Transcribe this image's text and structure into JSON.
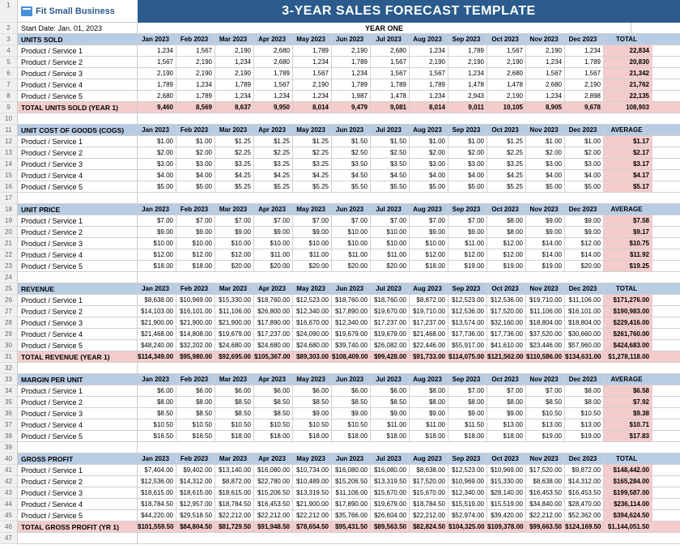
{
  "logo": "Fit Small Business",
  "title": "3-YEAR SALES FORECAST TEMPLATE",
  "startDate": "Start Date: Jan. 01, 2023",
  "yearLabel": "YEAR ONE",
  "months": [
    "Jan 2023",
    "Feb 2023",
    "Mar 2023",
    "Apr 2023",
    "May 2023",
    "Jun 2023",
    "Jul 2023",
    "Aug 2023",
    "Sep 2023",
    "Oct 2023",
    "Nov 2023",
    "Dec 2023"
  ],
  "totalLabel": "TOTAL",
  "averageLabel": "AVERAGE",
  "products": [
    "Product / Service 1",
    "Product / Service 2",
    "Product / Service 3",
    "Product / Service 4",
    "Product / Service 5"
  ],
  "sections": [
    {
      "header": "UNITS SOLD",
      "totalCol": "TOTAL",
      "rows": [
        {
          "vals": [
            "1,234",
            "1,567",
            "2,190",
            "2,680",
            "1,789",
            "2,190",
            "2,680",
            "1,234",
            "1,789",
            "1,567",
            "2,190",
            "1,234"
          ],
          "total": "22,834"
        },
        {
          "vals": [
            "1,567",
            "2,190",
            "1,234",
            "2,680",
            "1,234",
            "1,789",
            "1,567",
            "2,190",
            "2,190",
            "2,190",
            "1,234",
            "1,789"
          ],
          "total": "20,830"
        },
        {
          "vals": [
            "2,190",
            "2,190",
            "2,190",
            "1,789",
            "1,567",
            "1,234",
            "1,567",
            "1,567",
            "1,234",
            "2,680",
            "1,567",
            "1,567"
          ],
          "total": "21,342"
        },
        {
          "vals": [
            "1,789",
            "1,234",
            "1,789",
            "1,567",
            "2,190",
            "1,789",
            "1,789",
            "1,789",
            "1,478",
            "1,478",
            "2,680",
            "2,190"
          ],
          "total": "21,762"
        },
        {
          "vals": [
            "2,680",
            "1,789",
            "1,234",
            "1,234",
            "1,234",
            "1,987",
            "1,478",
            "1,234",
            "2,943",
            "2,190",
            "1,234",
            "2,898"
          ],
          "total": "22,135"
        }
      ],
      "totalRow": {
        "label": "TOTAL UNITS SOLD (YEAR 1)",
        "vals": [
          "9,460",
          "8,569",
          "8,637",
          "9,950",
          "8,014",
          "9,479",
          "9,081",
          "8,014",
          "9,011",
          "10,105",
          "8,905",
          "9,678"
        ],
        "total": "108,903"
      }
    },
    {
      "header": "UNIT COST OF GOODS (COGS)",
      "totalCol": "AVERAGE",
      "rows": [
        {
          "vals": [
            "$1.00",
            "$1.00",
            "$1.25",
            "$1.25",
            "$1.25",
            "$1.50",
            "$1.50",
            "$1.00",
            "$1.00",
            "$1.25",
            "$1.00",
            "$1.00"
          ],
          "total": "$1.17"
        },
        {
          "vals": [
            "$2.00",
            "$2.00",
            "$2.25",
            "$2.25",
            "$2.25",
            "$2.50",
            "$2.50",
            "$2.00",
            "$2.00",
            "$2.25",
            "$2.00",
            "$2.00"
          ],
          "total": "$2.17"
        },
        {
          "vals": [
            "$3.00",
            "$3.00",
            "$3.25",
            "$3.25",
            "$3.25",
            "$3.50",
            "$3.50",
            "$3.00",
            "$3.00",
            "$3.25",
            "$3.00",
            "$3.00"
          ],
          "total": "$3.17"
        },
        {
          "vals": [
            "$4.00",
            "$4.00",
            "$4.25",
            "$4.25",
            "$4.25",
            "$4.50",
            "$4.50",
            "$4.00",
            "$4.00",
            "$4.25",
            "$4.00",
            "$4.00"
          ],
          "total": "$4.17"
        },
        {
          "vals": [
            "$5.00",
            "$5.00",
            "$5.25",
            "$5.25",
            "$5.25",
            "$5.50",
            "$5.50",
            "$5.00",
            "$5.00",
            "$5.25",
            "$5.00",
            "$5.00"
          ],
          "total": "$5.17"
        }
      ]
    },
    {
      "header": "UNIT PRICE",
      "totalCol": "AVERAGE",
      "rows": [
        {
          "vals": [
            "$7.00",
            "$7.00",
            "$7.00",
            "$7.00",
            "$7.00",
            "$7.00",
            "$7.00",
            "$7.00",
            "$7.00",
            "$8.00",
            "$9.00",
            "$9.00"
          ],
          "total": "$7.58"
        },
        {
          "vals": [
            "$9.00",
            "$9.00",
            "$9.00",
            "$9.00",
            "$9.00",
            "$10.00",
            "$10.00",
            "$9.00",
            "$9.00",
            "$8.00",
            "$9.00",
            "$9.00"
          ],
          "total": "$9.17"
        },
        {
          "vals": [
            "$10.00",
            "$10.00",
            "$10.00",
            "$10.00",
            "$10.00",
            "$10.00",
            "$10.00",
            "$10.00",
            "$11.00",
            "$12.00",
            "$14.00",
            "$12.00"
          ],
          "total": "$10.75"
        },
        {
          "vals": [
            "$12.00",
            "$12.00",
            "$12.00",
            "$11.00",
            "$11.00",
            "$11.00",
            "$11.00",
            "$12.00",
            "$12.00",
            "$12.00",
            "$14.00",
            "$14.00"
          ],
          "total": "$11.92"
        },
        {
          "vals": [
            "$18.00",
            "$18.00",
            "$20.00",
            "$20.00",
            "$20.00",
            "$20.00",
            "$20.00",
            "$18.00",
            "$19.00",
            "$19.00",
            "$19.00",
            "$20.00"
          ],
          "total": "$19.25"
        }
      ]
    },
    {
      "header": "REVENUE",
      "totalCol": "TOTAL",
      "rows": [
        {
          "vals": [
            "$8,638.00",
            "$10,969.00",
            "$15,330.00",
            "$18,760.00",
            "$12,523.00",
            "$18,760.00",
            "$18,760.00",
            "$8,872.00",
            "$12,523.00",
            "$12,536.00",
            "$19,710.00",
            "$11,106.00"
          ],
          "total": "$171,276.00"
        },
        {
          "vals": [
            "$14,103.00",
            "$16,101.00",
            "$11,106.00",
            "$26,800.00",
            "$12,340.00",
            "$17,890.00",
            "$19,670.00",
            "$19,710.00",
            "$12,536.00",
            "$17,520.00",
            "$11,106.00",
            "$16,101.00"
          ],
          "total": "$190,983.00"
        },
        {
          "vals": [
            "$21,900.00",
            "$21,900.00",
            "$21,900.00",
            "$17,890.00",
            "$16,670.00",
            "$12,340.00",
            "$17,237.00",
            "$17,237.00",
            "$13,574.00",
            "$32,160.00",
            "$18,804.00",
            "$18,804.00"
          ],
          "total": "$229,416.00"
        },
        {
          "vals": [
            "$21,468.00",
            "$14,808.00",
            "$19,679.00",
            "$17,237.00",
            "$24,090.00",
            "$19,679.00",
            "$19,679.00",
            "$21,468.00",
            "$17,736.00",
            "$17,736.00",
            "$37,520.00",
            "$30,660.00"
          ],
          "total": "$261,760.00"
        },
        {
          "vals": [
            "$48,240.00",
            "$32,202.00",
            "$24,680.00",
            "$24,680.00",
            "$24,680.00",
            "$39,740.00",
            "$26,082.00",
            "$22,446.00",
            "$55,917.00",
            "$41,610.00",
            "$23,446.00",
            "$57,960.00"
          ],
          "total": "$424,683.00"
        }
      ],
      "totalRow": {
        "label": "TOTAL REVENUE (YEAR 1)",
        "vals": [
          "$114,349.00",
          "$95,980.00",
          "$92,695.00",
          "$105,367.00",
          "$89,303.00",
          "$108,409.00",
          "$99,428.00",
          "$91,733.00",
          "$114,075.00",
          "$121,562.00",
          "$110,586.00",
          "$134,631.00"
        ],
        "total": "$1,278,118.00"
      }
    },
    {
      "header": "MARGIN PER UNIT",
      "totalCol": "AVERAGE",
      "rows": [
        {
          "vals": [
            "$6.00",
            "$6.00",
            "$6.00",
            "$6.00",
            "$6.00",
            "$6.00",
            "$6.00",
            "$8.00",
            "$7.00",
            "$7.00",
            "$7.00",
            "$8.00"
          ],
          "total": "$6.58"
        },
        {
          "vals": [
            "$8.00",
            "$8.00",
            "$8.50",
            "$8.50",
            "$8.50",
            "$8.50",
            "$8.50",
            "$8.00",
            "$8.00",
            "$8.00",
            "$8.50",
            "$8.00"
          ],
          "total": "$7.92"
        },
        {
          "vals": [
            "$8.50",
            "$8.50",
            "$8.50",
            "$8.50",
            "$9.00",
            "$9.00",
            "$9.00",
            "$9.00",
            "$9.00",
            "$9.00",
            "$10.50",
            "$10.50"
          ],
          "total": "$9.38"
        },
        {
          "vals": [
            "$10.50",
            "$10.50",
            "$10.50",
            "$10.50",
            "$10.50",
            "$10.50",
            "$11.00",
            "$11.00",
            "$11.50",
            "$13.00",
            "$13.00",
            "$13.00"
          ],
          "total": "$10.71"
        },
        {
          "vals": [
            "$16.50",
            "$16.50",
            "$18.00",
            "$18.00",
            "$18.00",
            "$18.00",
            "$18.00",
            "$18.00",
            "$18.00",
            "$18.00",
            "$19.00",
            "$19.00"
          ],
          "total": "$17.83"
        }
      ]
    },
    {
      "header": "GROSS PROFIT",
      "totalCol": "TOTAL",
      "rows": [
        {
          "vals": [
            "$7,404.00",
            "$9,402.00",
            "$13,140.00",
            "$16,080.00",
            "$10,734.00",
            "$16,080.00",
            "$16,080.00",
            "$8,638.00",
            "$12,523.00",
            "$10,969.00",
            "$17,520.00",
            "$9,872.00"
          ],
          "total": "$148,442.00"
        },
        {
          "vals": [
            "$12,536.00",
            "$14,312.00",
            "$8,872.00",
            "$22,780.00",
            "$10,489.00",
            "$15,206.50",
            "$13,319.50",
            "$17,520.00",
            "$10,969.00",
            "$15,330.00",
            "$8,638.00",
            "$14,312.00"
          ],
          "total": "$165,284.00"
        },
        {
          "vals": [
            "$18,615.00",
            "$18,615.00",
            "$18,615.00",
            "$15,206.50",
            "$13,319.50",
            "$11,106.00",
            "$15,670.00",
            "$15,670.00",
            "$12,340.00",
            "$28,140.00",
            "$16,453.50",
            "$16,453.50"
          ],
          "total": "$199,587.00"
        },
        {
          "vals": [
            "$18,784.50",
            "$12,957.00",
            "$18,784.50",
            "$16,453.50",
            "$21,900.00",
            "$17,890.00",
            "$19,679.00",
            "$18,784.50",
            "$15,519.00",
            "$15,519.00",
            "$34,840.00",
            "$28,470.00"
          ],
          "total": "$236,114.00"
        },
        {
          "vals": [
            "$44,220.00",
            "$29,518.50",
            "$22,212.00",
            "$22,212.00",
            "$22,212.00",
            "$35,766.00",
            "$26,604.00",
            "$22,212.00",
            "$52,974.00",
            "$39,420.00",
            "$22,212.00",
            "$52,362.00"
          ],
          "total": "$394,624.50"
        }
      ],
      "totalRow": {
        "label": "TOTAL GROSS PROFIT (YR 1)",
        "vals": [
          "$101,559.50",
          "$84,804.50",
          "$81,729.50",
          "$91,948.50",
          "$78,654.50",
          "$95,431.50",
          "$89,563.50",
          "$82,824.50",
          "$104,325.00",
          "$109,378.00",
          "$99,663.50",
          "$124,169.50"
        ],
        "total": "$1,144,051.50"
      }
    }
  ]
}
